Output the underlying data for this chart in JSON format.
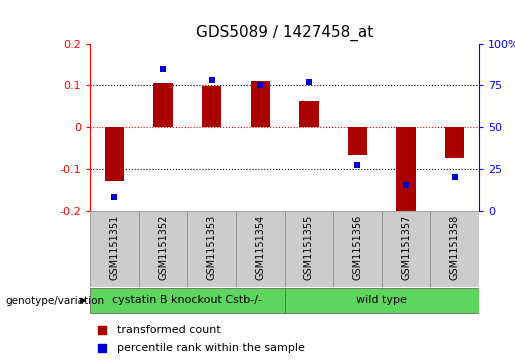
{
  "title": "GDS5089 / 1427458_at",
  "samples": [
    "GSM1151351",
    "GSM1151352",
    "GSM1151353",
    "GSM1151354",
    "GSM1151355",
    "GSM1151356",
    "GSM1151357",
    "GSM1151358"
  ],
  "transformed_count": [
    -0.13,
    0.105,
    0.098,
    0.11,
    0.062,
    -0.068,
    -0.205,
    -0.075
  ],
  "percentile_rank": [
    8,
    85,
    78,
    75,
    77,
    27,
    15,
    20
  ],
  "group1_label": "cystatin B knockout Cstb-/-",
  "group1_samples": [
    0,
    1,
    2,
    3
  ],
  "group2_label": "wild type",
  "group2_samples": [
    4,
    5,
    6,
    7
  ],
  "group_color": "#5cd65c",
  "ylim_left": [
    -0.2,
    0.2
  ],
  "ylim_right": [
    0,
    100
  ],
  "yticks_left": [
    -0.2,
    -0.1,
    0,
    0.1,
    0.2
  ],
  "yticks_right": [
    0,
    25,
    50,
    75,
    100
  ],
  "hlines": [
    -0.1,
    0.0,
    0.1
  ],
  "hline_colors": [
    "black",
    "red",
    "black"
  ],
  "bar_color": "#AA0000",
  "dot_color": "#0000CC",
  "bar_width": 0.4,
  "dot_size": 22,
  "title_fontsize": 11,
  "tick_fontsize": 8,
  "legend_fontsize": 8,
  "sample_fontsize": 7,
  "group_fontsize": 8,
  "genotext": "genotype/variation",
  "legend1": "transformed count",
  "legend2": "percentile rank within the sample"
}
